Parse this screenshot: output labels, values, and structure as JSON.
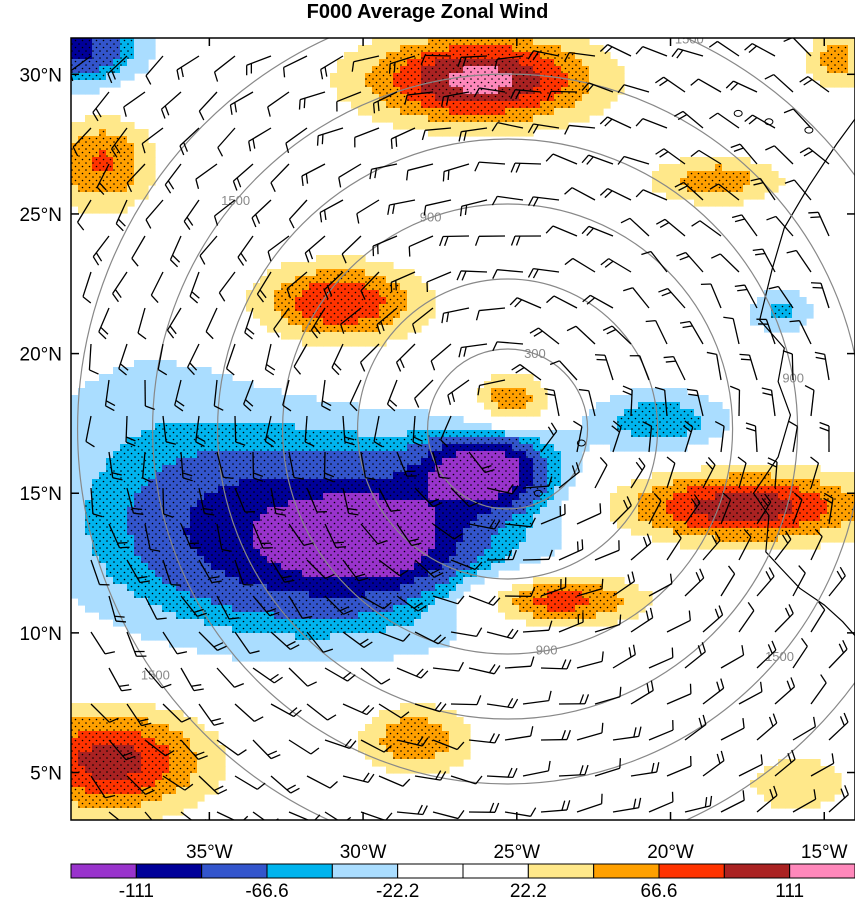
{
  "title": "F000 Average Zonal Wind",
  "colors": {
    "bins": [
      "#9933cc",
      "#000099",
      "#3355cc",
      "#00b4ee",
      "#aaddff",
      "#ffffff",
      "#ffffff",
      "#ffe88a",
      "#ffa000",
      "#ff3300",
      "#aa2222",
      "#ff88bb"
    ],
    "contour_line": "#000000",
    "range_ring": "#888888",
    "coast": "#000000"
  },
  "chart_data": {
    "type": "heatmap",
    "title": "F000 Average Zonal Wind",
    "xlim": [
      -39.5,
      -14
    ],
    "ylim": [
      3.3,
      31.3
    ],
    "x_ticks": [
      {
        "value": -35,
        "label": "35°W"
      },
      {
        "value": -30,
        "label": "30°W"
      },
      {
        "value": -25,
        "label": "25°W"
      },
      {
        "value": -20,
        "label": "20°W"
      },
      {
        "value": -15,
        "label": "15°W"
      }
    ],
    "y_ticks": [
      {
        "value": 5,
        "label": "5°N"
      },
      {
        "value": 10,
        "label": "10°N"
      },
      {
        "value": 15,
        "label": "15°N"
      },
      {
        "value": 20,
        "label": "20°N"
      },
      {
        "value": 25,
        "label": "25°N"
      },
      {
        "value": 30,
        "label": "30°N"
      }
    ],
    "colorbar": {
      "levels": [
        "-111",
        "-66.6",
        "-22.2",
        "22.2",
        "66.6",
        "111"
      ],
      "num_bins": 12
    },
    "range_rings": {
      "center": [
        -25.3,
        17.3
      ],
      "labels": [
        "300",
        "900",
        "1500"
      ]
    },
    "features": [
      {
        "kind": "negative",
        "lon": -31.7,
        "lat": 13.5,
        "value": -140,
        "sx": 4.6,
        "sy": 2.4
      },
      {
        "kind": "negative",
        "lon": -29.6,
        "lat": 13.3,
        "value": -80,
        "sx": 1.6,
        "sy": 1.0
      },
      {
        "kind": "negative",
        "lon": -26.0,
        "lat": 15.8,
        "value": -150,
        "sx": 1.4,
        "sy": 0.9
      },
      {
        "kind": "negative",
        "lon": -20.3,
        "lat": 17.6,
        "value": -60,
        "sx": 1.6,
        "sy": 0.8
      },
      {
        "kind": "negative",
        "lon": -16.4,
        "lat": 21.5,
        "value": -50,
        "sx": 0.8,
        "sy": 0.6
      },
      {
        "kind": "negative",
        "lon": -39.3,
        "lat": 31.0,
        "value": -110,
        "sx": 1.4,
        "sy": 1.0
      },
      {
        "kind": "negative",
        "lon": -37.0,
        "lat": 18.0,
        "value": -25,
        "sx": 3.0,
        "sy": 2.5
      },
      {
        "kind": "positive",
        "lon": -26.2,
        "lat": 29.8,
        "value": 120,
        "sx": 2.6,
        "sy": 1.1
      },
      {
        "kind": "positive",
        "lon": -30.8,
        "lat": 21.8,
        "value": 90,
        "sx": 1.9,
        "sy": 1.0
      },
      {
        "kind": "positive",
        "lon": -25.2,
        "lat": 18.3,
        "value": 70,
        "sx": 0.9,
        "sy": 0.7
      },
      {
        "kind": "positive",
        "lon": -23.8,
        "lat": 11.2,
        "value": 95,
        "sx": 2.0,
        "sy": 0.7
      },
      {
        "kind": "positive",
        "lon": -17.7,
        "lat": 14.5,
        "value": 105,
        "sx": 3.0,
        "sy": 0.9
      },
      {
        "kind": "positive",
        "lon": -38.2,
        "lat": 5.4,
        "value": 100,
        "sx": 2.2,
        "sy": 1.3
      },
      {
        "kind": "positive",
        "lon": -28.3,
        "lat": 6.2,
        "value": 65,
        "sx": 1.3,
        "sy": 0.9
      },
      {
        "kind": "positive",
        "lon": -38.5,
        "lat": 26.8,
        "value": 70,
        "sx": 1.2,
        "sy": 1.2
      },
      {
        "kind": "positive",
        "lon": -18.5,
        "lat": 26.2,
        "value": 60,
        "sx": 1.5,
        "sy": 0.6
      },
      {
        "kind": "positive",
        "lon": -14.6,
        "lat": 30.5,
        "value": 55,
        "sx": 0.7,
        "sy": 0.8
      },
      {
        "kind": "positive",
        "lon": -15.9,
        "lat": 4.6,
        "value": 40,
        "sx": 1.3,
        "sy": 0.8
      }
    ]
  }
}
